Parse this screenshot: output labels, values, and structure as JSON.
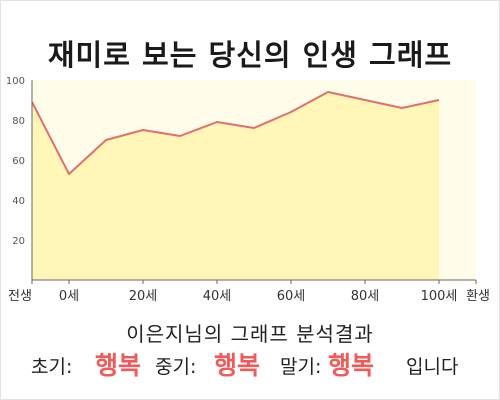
{
  "title": "재미로 보는 당신의 인생 그래프",
  "chart_data": {
    "type": "area",
    "x": [
      0,
      10,
      20,
      30,
      40,
      50,
      60,
      70,
      80,
      90,
      100,
      110
    ],
    "values": [
      89,
      53,
      70,
      75,
      72,
      79,
      76,
      84,
      94,
      90,
      86,
      90
    ],
    "x_tick_labels": [
      {
        "x": 0,
        "label": "전생"
      },
      {
        "x": 10,
        "label": "0세"
      },
      {
        "x": 30,
        "label": "20세"
      },
      {
        "x": 50,
        "label": "40세"
      },
      {
        "x": 70,
        "label": "60세"
      },
      {
        "x": 90,
        "label": "80세"
      },
      {
        "x": 110,
        "label": "100세"
      },
      {
        "x": 120,
        "label": "환생"
      }
    ],
    "xlim": [
      0,
      120
    ],
    "ylim": [
      0,
      100
    ],
    "y_ticks": [
      20,
      40,
      60,
      80,
      100
    ],
    "grid": false,
    "colors": {
      "line": "#e07070",
      "fill": "#fff6b8",
      "background": "#fffdea",
      "axis": "#666666"
    }
  },
  "analysis": {
    "title": "이은지님의 그래프 분석결과",
    "early_label": "초기:",
    "early_value": "행복",
    "mid_label": "중기:",
    "mid_value": "행복",
    "late_label": "말기:",
    "late_value": "행복",
    "suffix": "입니다"
  },
  "colors": {
    "highlight": "#f25a5a"
  }
}
